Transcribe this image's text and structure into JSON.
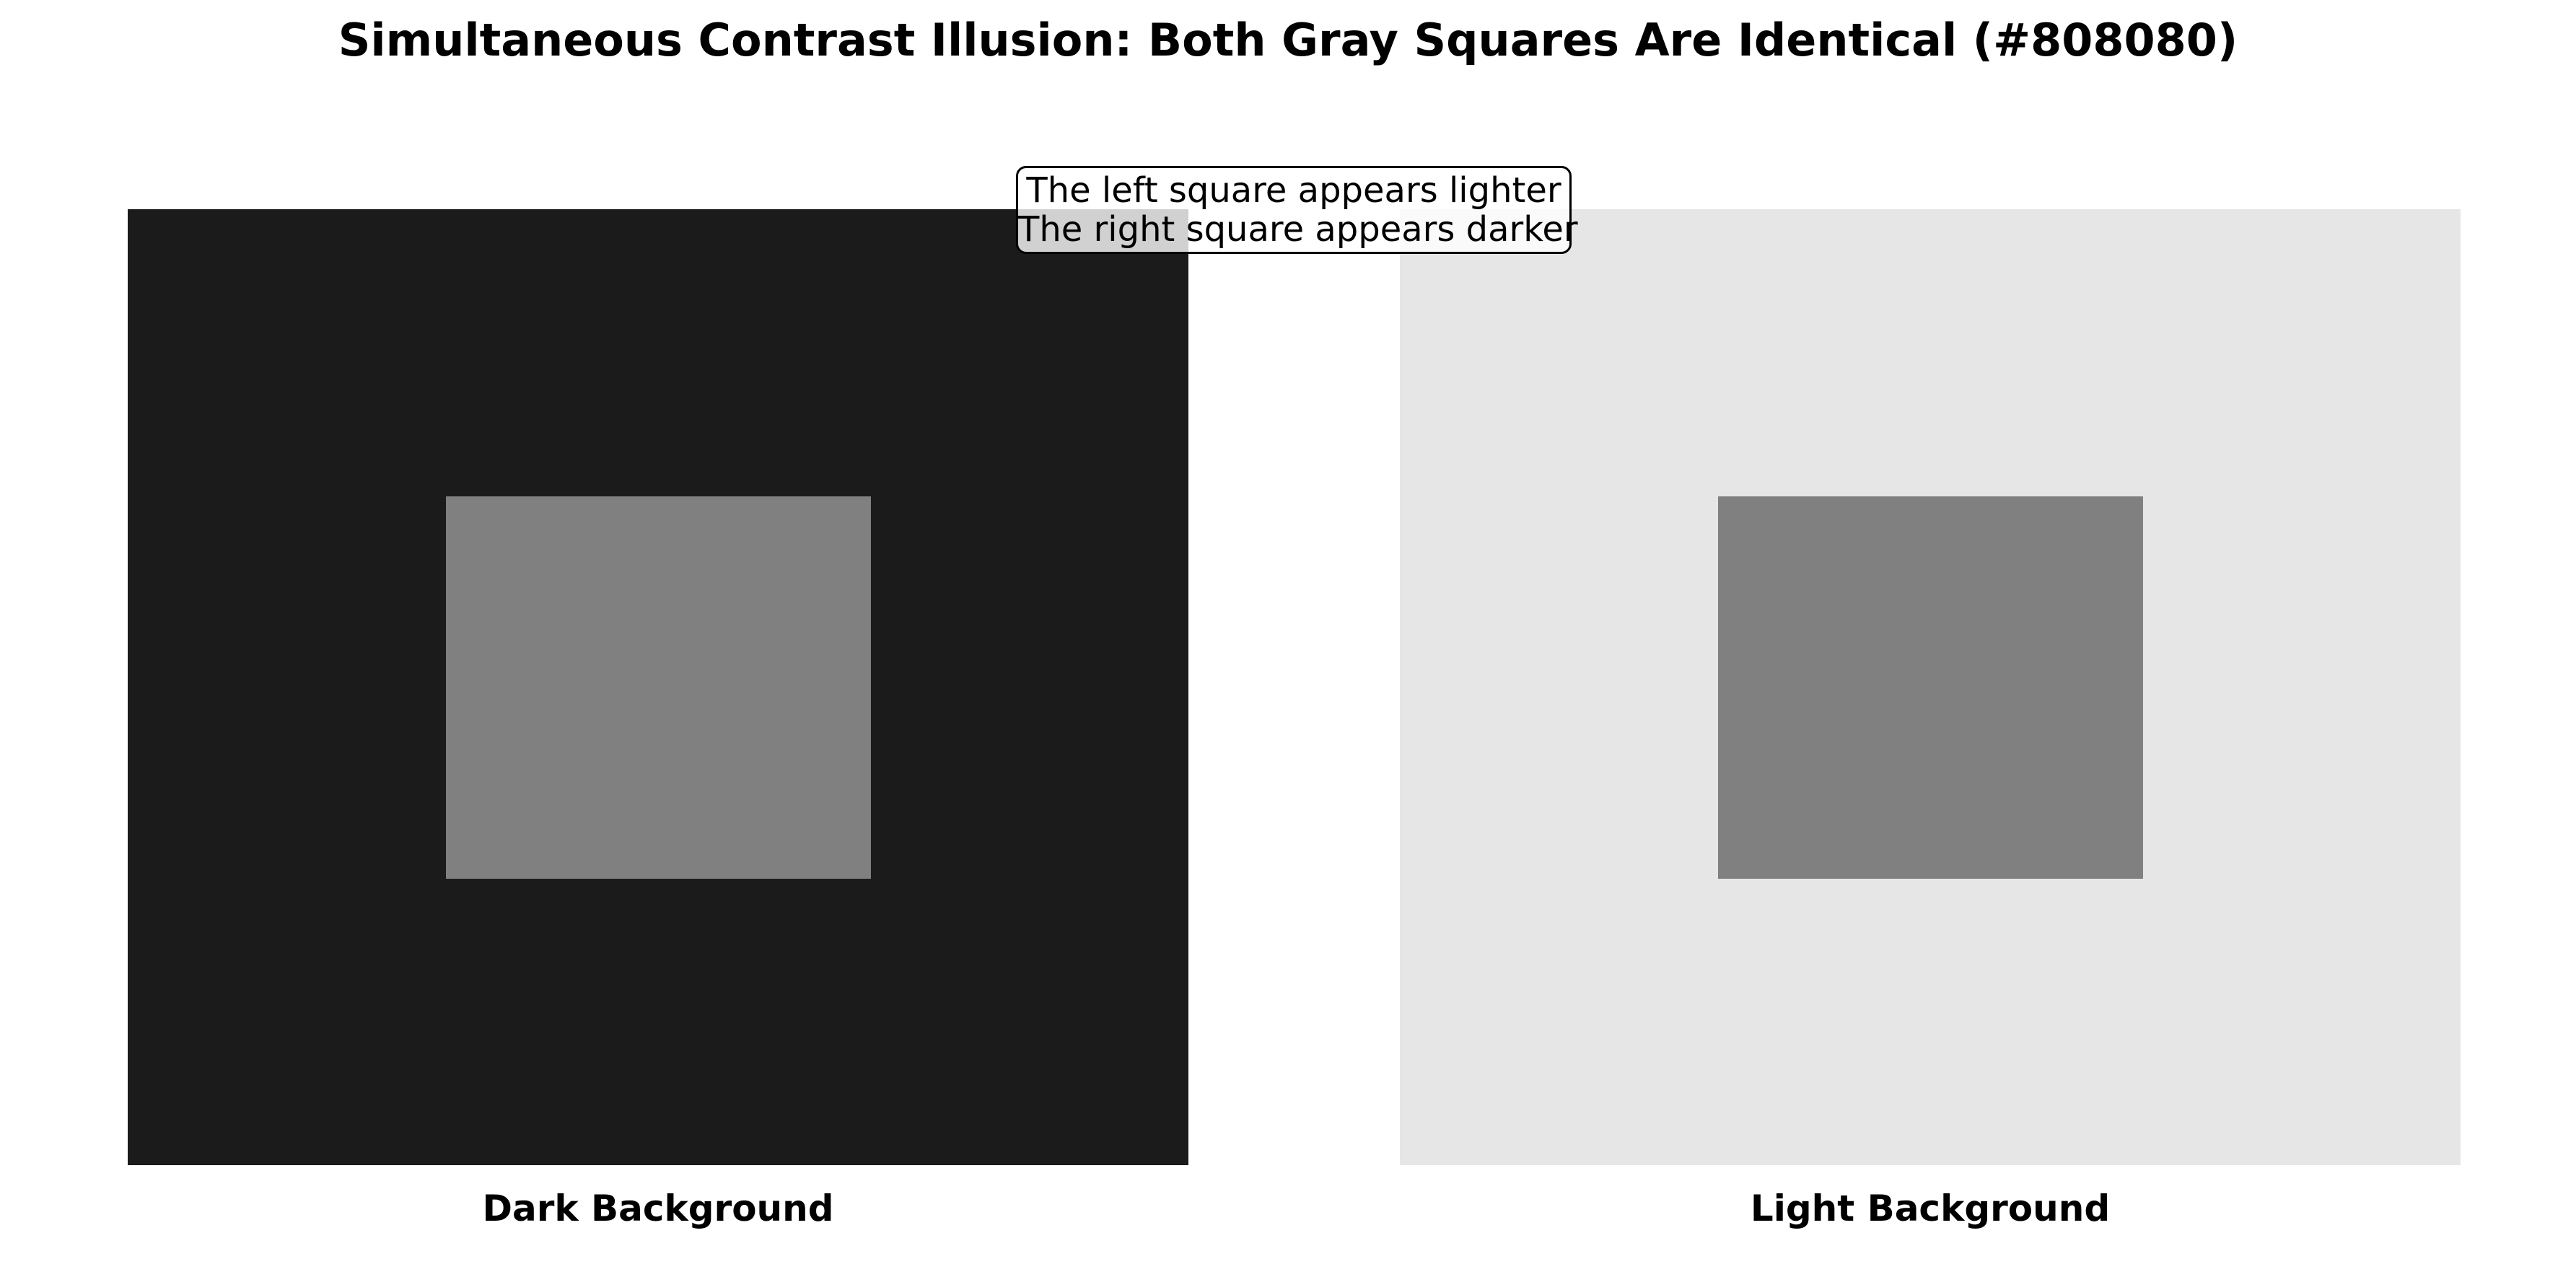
{
  "title": "Simultaneous Contrast Illusion: Both Gray Squares Are Identical (#808080)",
  "annotation": {
    "line1": "The left square appears lighter",
    "line2": "The right square appears darker"
  },
  "panels": [
    {
      "label": "Dark Background",
      "background_color": "#1b1b1b",
      "square_color": "#808080"
    },
    {
      "label": "Light Background",
      "background_color": "#e6e6e6",
      "square_color": "#808080"
    }
  ]
}
